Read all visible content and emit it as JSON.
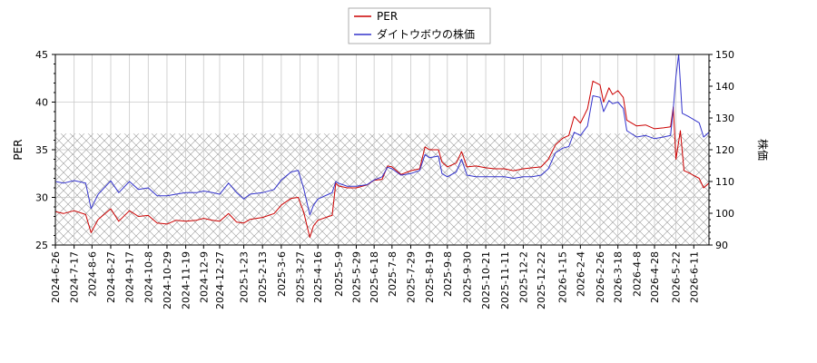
{
  "chart_data": {
    "type": "line",
    "title": "",
    "xlabel": "",
    "ylabel_left": "PER",
    "ylabel_right": "株価",
    "y_left_range": [
      25,
      45
    ],
    "y_right_range": [
      90,
      150
    ],
    "y_left_ticks": [
      25,
      30,
      35,
      40,
      45
    ],
    "y_right_ticks": [
      90,
      100,
      110,
      120,
      130,
      140,
      150
    ],
    "x_range": [
      "2024-06-26",
      "2026-06-28"
    ],
    "x_ticks": [
      "2024-6-26",
      "2024-7-17",
      "2024-8-6",
      "2024-8-27",
      "2024-9-17",
      "2024-10-8",
      "2024-10-29",
      "2024-11-19",
      "2024-12-9",
      "2024-12-27",
      "2025-1-23",
      "2025-2-13",
      "2025-3-6",
      "2025-3-27",
      "2025-4-16",
      "2025-5-9",
      "2025-5-29",
      "2025-6-18",
      "2025-7-8",
      "2025-7-29",
      "2025-8-19",
      "2025-9-8",
      "2025-9-30",
      "2025-10-21",
      "2025-11-11",
      "2025-12-2",
      "2025-12-22",
      "2026-1-15",
      "2026-2-4",
      "2026-2-26",
      "2026-3-18",
      "2026-4-8",
      "2026-4-28",
      "2026-5-22",
      "2026-6-11"
    ],
    "grid": true,
    "legend_position": "top-center",
    "hatched_band": {
      "axis": "left",
      "from": 25,
      "to": 36.7
    },
    "series": [
      {
        "name": "PER",
        "axis": "left",
        "color": "#cc0000",
        "points": [
          [
            "2024-06-26",
            28.5
          ],
          [
            "2024-07-05",
            28.3
          ],
          [
            "2024-07-17",
            28.6
          ],
          [
            "2024-07-30",
            28.2
          ],
          [
            "2024-08-05",
            26.3
          ],
          [
            "2024-08-13",
            27.7
          ],
          [
            "2024-08-27",
            28.8
          ],
          [
            "2024-09-05",
            27.5
          ],
          [
            "2024-09-17",
            28.6
          ],
          [
            "2024-09-27",
            28.0
          ],
          [
            "2024-10-08",
            28.1
          ],
          [
            "2024-10-18",
            27.3
          ],
          [
            "2024-10-29",
            27.2
          ],
          [
            "2024-11-08",
            27.6
          ],
          [
            "2024-11-19",
            27.5
          ],
          [
            "2024-12-01",
            27.6
          ],
          [
            "2024-12-09",
            27.8
          ],
          [
            "2024-12-19",
            27.6
          ],
          [
            "2024-12-27",
            27.5
          ],
          [
            "2025-01-06",
            28.3
          ],
          [
            "2025-01-15",
            27.4
          ],
          [
            "2025-01-23",
            27.3
          ],
          [
            "2025-01-30",
            27.7
          ],
          [
            "2025-02-13",
            27.9
          ],
          [
            "2025-02-26",
            28.3
          ],
          [
            "2025-03-06",
            29.2
          ],
          [
            "2025-03-17",
            29.9
          ],
          [
            "2025-03-25",
            30.0
          ],
          [
            "2025-03-31",
            28.5
          ],
          [
            "2025-04-07",
            25.8
          ],
          [
            "2025-04-11",
            27.0
          ],
          [
            "2025-04-16",
            27.6
          ],
          [
            "2025-04-28",
            28.0
          ],
          [
            "2025-05-02",
            28.1
          ],
          [
            "2025-05-06",
            31.5
          ],
          [
            "2025-05-09",
            31.2
          ],
          [
            "2025-05-19",
            31.0
          ],
          [
            "2025-05-29",
            31.0
          ],
          [
            "2025-06-10",
            31.3
          ],
          [
            "2025-06-18",
            31.8
          ],
          [
            "2025-06-27",
            31.9
          ],
          [
            "2025-07-03",
            33.3
          ],
          [
            "2025-07-08",
            33.2
          ],
          [
            "2025-07-18",
            32.4
          ],
          [
            "2025-07-29",
            32.8
          ],
          [
            "2025-08-08",
            33.0
          ],
          [
            "2025-08-14",
            35.3
          ],
          [
            "2025-08-19",
            35.0
          ],
          [
            "2025-08-29",
            35.0
          ],
          [
            "2025-09-02",
            33.7
          ],
          [
            "2025-09-08",
            33.2
          ],
          [
            "2025-09-18",
            33.6
          ],
          [
            "2025-09-24",
            34.8
          ],
          [
            "2025-09-30",
            33.2
          ],
          [
            "2025-10-10",
            33.3
          ],
          [
            "2025-10-21",
            33.1
          ],
          [
            "2025-10-31",
            33.0
          ],
          [
            "2025-11-11",
            33.0
          ],
          [
            "2025-11-21",
            32.8
          ],
          [
            "2025-12-02",
            33.0
          ],
          [
            "2025-12-12",
            33.1
          ],
          [
            "2025-12-22",
            33.2
          ],
          [
            "2025-12-30",
            34.0
          ],
          [
            "2026-01-07",
            35.5
          ],
          [
            "2026-01-15",
            36.2
          ],
          [
            "2026-01-22",
            36.5
          ],
          [
            "2026-01-28",
            38.5
          ],
          [
            "2026-02-04",
            37.8
          ],
          [
            "2026-02-12",
            39.3
          ],
          [
            "2026-02-18",
            42.2
          ],
          [
            "2026-02-26",
            41.8
          ],
          [
            "2026-03-02",
            40.0
          ],
          [
            "2026-03-08",
            41.5
          ],
          [
            "2026-03-12",
            40.8
          ],
          [
            "2026-03-18",
            41.2
          ],
          [
            "2026-03-24",
            40.5
          ],
          [
            "2026-03-28",
            38.1
          ],
          [
            "2026-04-08",
            37.5
          ],
          [
            "2026-04-18",
            37.6
          ],
          [
            "2026-04-28",
            37.2
          ],
          [
            "2026-05-08",
            37.3
          ],
          [
            "2026-05-16",
            37.4
          ],
          [
            "2026-05-19",
            39.5
          ],
          [
            "2026-05-22",
            34.0
          ],
          [
            "2026-05-27",
            37.0
          ],
          [
            "2026-05-31",
            32.8
          ],
          [
            "2026-06-05",
            32.6
          ],
          [
            "2026-06-11",
            32.3
          ],
          [
            "2026-06-17",
            32.0
          ],
          [
            "2026-06-22",
            31.0
          ],
          [
            "2026-06-28",
            31.5
          ]
        ]
      },
      {
        "name": "ダイトウボウの株価",
        "axis": "right",
        "color": "#3333cc",
        "points": [
          [
            "2024-06-26",
            110.0
          ],
          [
            "2024-07-05",
            109.5
          ],
          [
            "2024-07-17",
            110.3
          ],
          [
            "2024-07-30",
            109.5
          ],
          [
            "2024-08-05",
            101.5
          ],
          [
            "2024-08-13",
            106.0
          ],
          [
            "2024-08-27",
            110.2
          ],
          [
            "2024-09-05",
            106.5
          ],
          [
            "2024-09-17",
            110.0
          ],
          [
            "2024-09-27",
            107.5
          ],
          [
            "2024-10-08",
            108.0
          ],
          [
            "2024-10-18",
            105.5
          ],
          [
            "2024-10-29",
            105.5
          ],
          [
            "2024-11-08",
            106.0
          ],
          [
            "2024-11-19",
            106.5
          ],
          [
            "2024-12-01",
            106.5
          ],
          [
            "2024-12-09",
            107.0
          ],
          [
            "2024-12-19",
            106.5
          ],
          [
            "2024-12-27",
            106.0
          ],
          [
            "2025-01-06",
            109.5
          ],
          [
            "2025-01-15",
            106.5
          ],
          [
            "2025-01-23",
            104.5
          ],
          [
            "2025-01-30",
            106.0
          ],
          [
            "2025-02-13",
            106.5
          ],
          [
            "2025-02-26",
            107.5
          ],
          [
            "2025-03-06",
            110.5
          ],
          [
            "2025-03-17",
            113.0
          ],
          [
            "2025-03-25",
            113.5
          ],
          [
            "2025-03-31",
            108.0
          ],
          [
            "2025-04-07",
            99.5
          ],
          [
            "2025-04-11",
            102.5
          ],
          [
            "2025-04-16",
            104.5
          ],
          [
            "2025-04-28",
            106.0
          ],
          [
            "2025-05-02",
            106.5
          ],
          [
            "2025-05-06",
            110.0
          ],
          [
            "2025-05-09",
            109.5
          ],
          [
            "2025-05-19",
            108.5
          ],
          [
            "2025-05-29",
            108.5
          ],
          [
            "2025-06-10",
            109.0
          ],
          [
            "2025-06-18",
            110.5
          ],
          [
            "2025-06-27",
            111.5
          ],
          [
            "2025-07-03",
            114.5
          ],
          [
            "2025-07-08",
            114.0
          ],
          [
            "2025-07-18",
            112.0
          ],
          [
            "2025-07-29",
            112.5
          ],
          [
            "2025-08-08",
            113.5
          ],
          [
            "2025-08-14",
            118.5
          ],
          [
            "2025-08-19",
            117.5
          ],
          [
            "2025-08-29",
            118.0
          ],
          [
            "2025-09-02",
            112.5
          ],
          [
            "2025-09-08",
            111.5
          ],
          [
            "2025-09-18",
            113.0
          ],
          [
            "2025-09-24",
            117.0
          ],
          [
            "2025-09-30",
            112.0
          ],
          [
            "2025-10-10",
            111.5
          ],
          [
            "2025-10-21",
            111.5
          ],
          [
            "2025-10-31",
            111.5
          ],
          [
            "2025-11-11",
            111.5
          ],
          [
            "2025-11-21",
            111.0
          ],
          [
            "2025-12-02",
            111.5
          ],
          [
            "2025-12-12",
            111.5
          ],
          [
            "2025-12-22",
            112.0
          ],
          [
            "2025-12-30",
            114.0
          ],
          [
            "2026-01-07",
            119.0
          ],
          [
            "2026-01-15",
            120.5
          ],
          [
            "2026-01-22",
            121.0
          ],
          [
            "2026-01-28",
            125.5
          ],
          [
            "2026-02-04",
            124.5
          ],
          [
            "2026-02-12",
            127.5
          ],
          [
            "2026-02-18",
            137.0
          ],
          [
            "2026-02-26",
            136.5
          ],
          [
            "2026-03-02",
            132.0
          ],
          [
            "2026-03-08",
            135.5
          ],
          [
            "2026-03-12",
            134.5
          ],
          [
            "2026-03-18",
            135.0
          ],
          [
            "2026-03-24",
            133.0
          ],
          [
            "2026-03-28",
            126.0
          ],
          [
            "2026-04-08",
            124.0
          ],
          [
            "2026-04-18",
            124.5
          ],
          [
            "2026-04-28",
            123.5
          ],
          [
            "2026-05-08",
            124.0
          ],
          [
            "2026-05-16",
            124.5
          ],
          [
            "2026-05-19",
            133.0
          ],
          [
            "2026-05-22",
            143.0
          ],
          [
            "2026-05-25",
            150.0
          ],
          [
            "2026-05-29",
            131.5
          ],
          [
            "2026-06-05",
            130.5
          ],
          [
            "2026-06-11",
            129.5
          ],
          [
            "2026-06-17",
            128.5
          ],
          [
            "2026-06-22",
            124.0
          ],
          [
            "2026-06-28",
            125.5
          ]
        ]
      }
    ]
  }
}
